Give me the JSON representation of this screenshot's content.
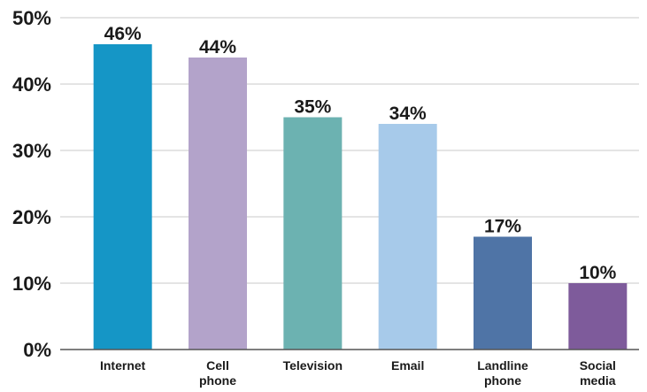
{
  "chart_data": {
    "type": "bar",
    "categories": [
      [
        "Internet"
      ],
      [
        "Cell",
        "phone"
      ],
      [
        "Television"
      ],
      [
        "Email"
      ],
      [
        "Landline",
        "phone"
      ],
      [
        "Social",
        "media"
      ]
    ],
    "values": [
      46,
      44,
      35,
      34,
      17,
      10
    ],
    "data_labels": [
      "46%",
      "44%",
      "35%",
      "34%",
      "17%",
      "10%"
    ],
    "colors": [
      "#1596c6",
      "#b3a3ca",
      "#6cb2b1",
      "#a7caea",
      "#4f74a6",
      "#7e5b9b"
    ],
    "ylim": [
      0,
      50
    ],
    "yticks": [
      0,
      10,
      20,
      30,
      40,
      50
    ],
    "ytick_labels": [
      "0%",
      "10%",
      "20%",
      "30%",
      "40%",
      "50%"
    ],
    "grid": true,
    "title": "",
    "xlabel": "",
    "ylabel": ""
  }
}
